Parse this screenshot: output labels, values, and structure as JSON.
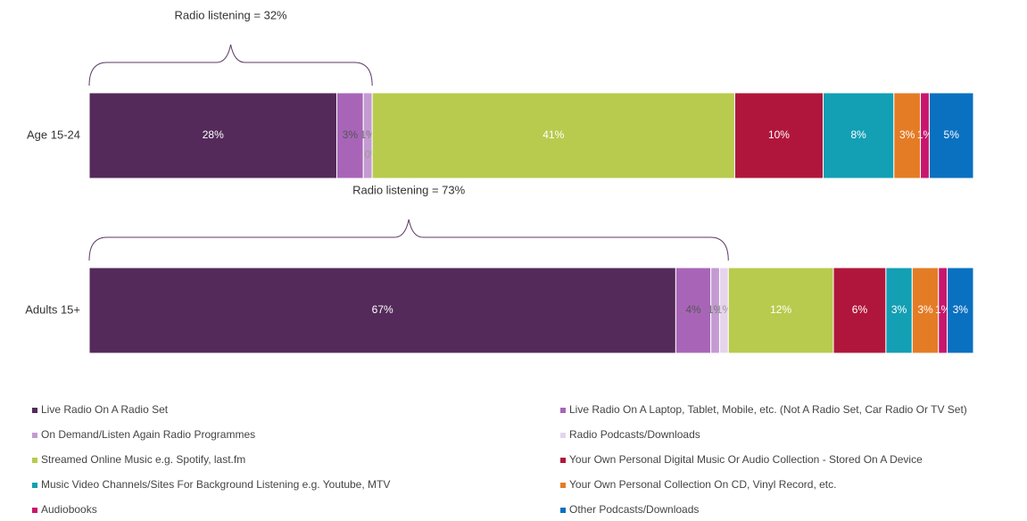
{
  "chart_data": {
    "type": "bar",
    "orientation": "horizontal",
    "stacked": true,
    "categories": [
      "Age 15-24",
      "Adults 15+"
    ],
    "annotations": [
      "Radio listening = 32%",
      "Radio listening = 73%"
    ],
    "series": [
      {
        "name": "Live Radio On A Radio Set",
        "color": "#532a5a",
        "values": [
          28,
          67
        ],
        "value_labels": [
          "28%",
          "67%"
        ]
      },
      {
        "name": "Live Radio On A Laptop, Tablet, Mobile, etc. (Not A Radio Set, Car Radio Or TV Set)",
        "color": "#a865b8",
        "values": [
          3,
          4
        ],
        "value_labels": [
          "3%",
          "4%"
        ]
      },
      {
        "name": "On Demand/Listen Again Radio Programmes",
        "color": "#c49ad2",
        "values": [
          1,
          1
        ],
        "value_labels": [
          "1%",
          "1%"
        ]
      },
      {
        "name": "Radio Podcasts/Downloads",
        "color": "#e6d3ec",
        "values": [
          0,
          1
        ],
        "value_labels": [
          "0%",
          "1%"
        ]
      },
      {
        "name": "Streamed Online Music e.g. Spotify, last.fm",
        "color": "#b8cb4e",
        "values": [
          41,
          12
        ],
        "value_labels": [
          "41%",
          "12%"
        ]
      },
      {
        "name": "Your Own Personal Digital Music Or Audio Collection - Stored On A Device",
        "color": "#b0163b",
        "values": [
          10,
          6
        ],
        "value_labels": [
          "10%",
          "6%"
        ]
      },
      {
        "name": "Music Video Channels/Sites For Background Listening e.g. Youtube, MTV",
        "color": "#139fb4",
        "values": [
          8,
          3
        ],
        "value_labels": [
          "8%",
          "3%"
        ]
      },
      {
        "name": "Your Own Personal Collection On CD, Vinyl Record, etc.",
        "color": "#e47c26",
        "values": [
          3,
          3
        ],
        "value_labels": [
          "3%",
          "3%"
        ]
      },
      {
        "name": "Audiobooks",
        "color": "#c8166d",
        "values": [
          1,
          1
        ],
        "value_labels": [
          "1%",
          "1%"
        ]
      },
      {
        "name": "Other Podcasts/Downloads",
        "color": "#0a70c0",
        "values": [
          5,
          3
        ],
        "value_labels": [
          "5%",
          "3%"
        ]
      }
    ]
  }
}
